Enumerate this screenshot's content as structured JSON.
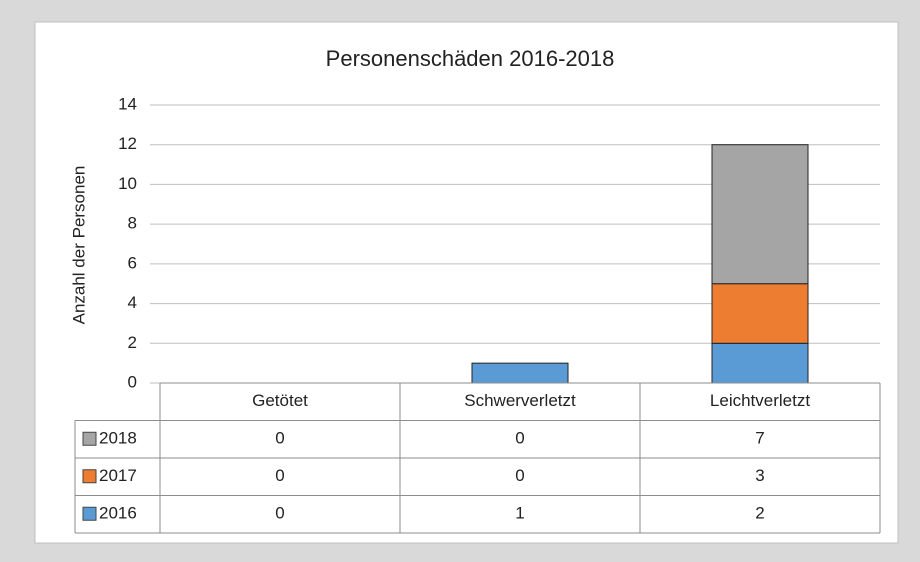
{
  "chart_data": {
    "type": "stacked_bar",
    "title": "Personenschäden 2016-2018",
    "y_label": "Anzahl der Personen",
    "categories": [
      "Getötet",
      "Schwerverletzt",
      "Leichtverletzt"
    ],
    "series": [
      {
        "name": "2016",
        "color": "#5b9bd5",
        "values": [
          0,
          1,
          2
        ]
      },
      {
        "name": "2017",
        "color": "#ed7d31",
        "values": [
          0,
          0,
          3
        ]
      },
      {
        "name": "2018",
        "color": "#a5a5a5",
        "values": [
          0,
          0,
          7
        ]
      }
    ],
    "ylim": [
      0,
      14
    ],
    "yticks": [
      0,
      2,
      4,
      6,
      8,
      10,
      12,
      14
    ],
    "grid": true,
    "data_table": true
  }
}
